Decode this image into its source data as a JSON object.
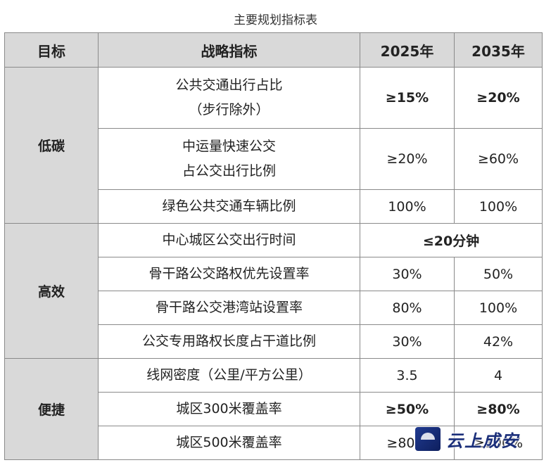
{
  "caption": "主要规划指标表",
  "headers": {
    "goal": "目标",
    "metric": "战略指标",
    "y2025": "2025年",
    "y2035": "2035年"
  },
  "groups": {
    "low_carbon": "低碳",
    "efficient": "高效",
    "convenient": "便捷"
  },
  "rows": [
    {
      "metric_line1": "公共交通出行占比",
      "metric_line2": "（步行除外）",
      "y2025": "≥15%",
      "y2035": "≥20%"
    },
    {
      "metric_line1": "中运量快速公交",
      "metric_line2": "占公交出行比例",
      "y2025": "≥20%",
      "y2035": "≥60%"
    },
    {
      "metric": "绿色公共交通车辆比例",
      "y2025": "100%",
      "y2035": "100%"
    },
    {
      "metric": "中心城区公交出行时间",
      "merged": "≤20分钟"
    },
    {
      "metric": "骨干路公交路权优先设置率",
      "y2025": "30%",
      "y2035": "50%"
    },
    {
      "metric": "骨干路公交港湾站设置率",
      "y2025": "80%",
      "y2035": "100%"
    },
    {
      "metric": "公交专用路权长度占干道比例",
      "y2025": "30%",
      "y2035": "42%"
    },
    {
      "metric": "线网密度（公里/平方公里）",
      "y2025": "3.5",
      "y2035": "4"
    },
    {
      "metric": "城区300米覆盖率",
      "y2025": "≥50%",
      "y2035": "≥80%"
    },
    {
      "metric": "城区500米覆盖率",
      "y2025": "≥80%",
      "y2035": "≥100%"
    }
  ],
  "watermark": {
    "logo_icon": "cloud-logo-icon",
    "text": "云上成安"
  },
  "colors": {
    "header_bg": "#d9d9d9",
    "highlight": "#e8121c"
  }
}
